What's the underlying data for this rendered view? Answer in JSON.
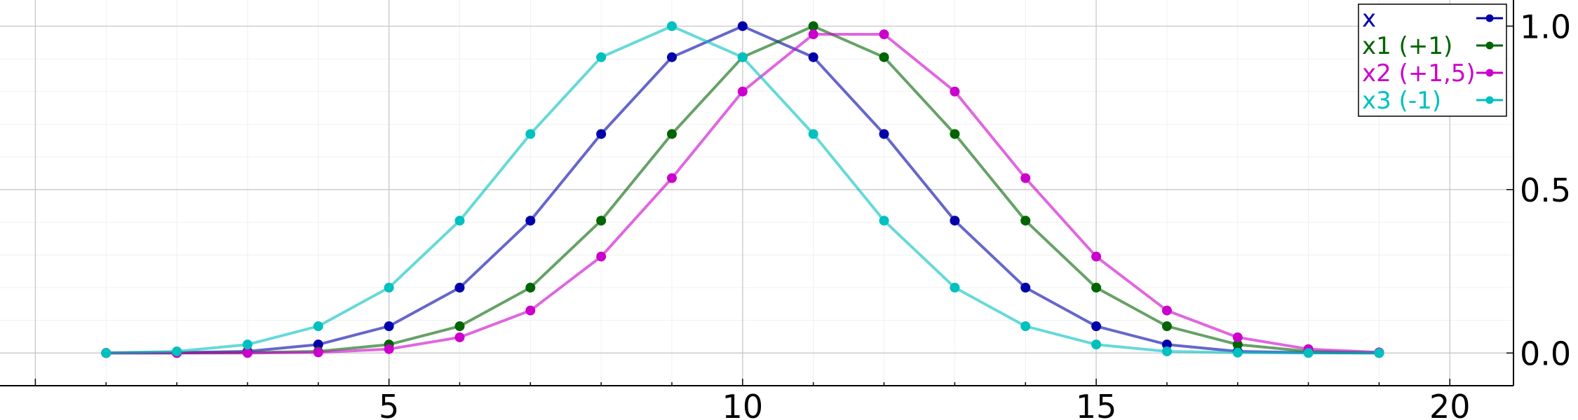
{
  "chart_data": {
    "type": "line",
    "title": "",
    "xlabel": "",
    "ylabel": "",
    "xlim": [
      -0.5,
      20.9
    ],
    "ylim": [
      -0.1,
      1.08
    ],
    "xticks": [
      5,
      10,
      15,
      20
    ],
    "xtick_labels": [
      "5",
      "10",
      "15",
      "20"
    ],
    "yticks": [
      0.0,
      0.5,
      1.0
    ],
    "ytick_labels": [
      "0.0",
      "0.5",
      "1.0"
    ],
    "y_axis_position": "right",
    "grid": true,
    "minor_grid": true,
    "legend_position": "top-right",
    "x": [
      1,
      2,
      3,
      4,
      5,
      6,
      7,
      8,
      9,
      10,
      11,
      12,
      13,
      14,
      15,
      16,
      17,
      18,
      19
    ],
    "series": [
      {
        "name": "x",
        "color": "#0000aa",
        "values": [
          0.0,
          0.001,
          0.005,
          0.026,
          0.082,
          0.2,
          0.405,
          0.67,
          0.905,
          1.0,
          0.905,
          0.67,
          0.405,
          0.2,
          0.082,
          0.026,
          0.005,
          0.001,
          0.0
        ]
      },
      {
        "name": "x1 (+1)",
        "color": "#006400",
        "values": [
          0.0,
          0.0,
          0.001,
          0.005,
          0.026,
          0.082,
          0.2,
          0.405,
          0.67,
          0.905,
          1.0,
          0.905,
          0.67,
          0.405,
          0.2,
          0.082,
          0.026,
          0.005,
          0.001
        ]
      },
      {
        "name": "x2 (+1,5)",
        "color": "#cc00cc",
        "values": [
          0.0,
          0.0,
          0.0,
          0.002,
          0.012,
          0.048,
          0.13,
          0.295,
          0.535,
          0.8,
          0.975,
          0.975,
          0.8,
          0.535,
          0.295,
          0.13,
          0.048,
          0.012,
          0.002
        ]
      },
      {
        "name": "x3 (-1)",
        "color": "#00c0c0",
        "values": [
          0.0,
          0.005,
          0.026,
          0.082,
          0.2,
          0.405,
          0.67,
          0.905,
          1.0,
          0.905,
          0.67,
          0.405,
          0.2,
          0.082,
          0.026,
          0.005,
          0.001,
          0.0,
          0.0
        ]
      }
    ]
  }
}
